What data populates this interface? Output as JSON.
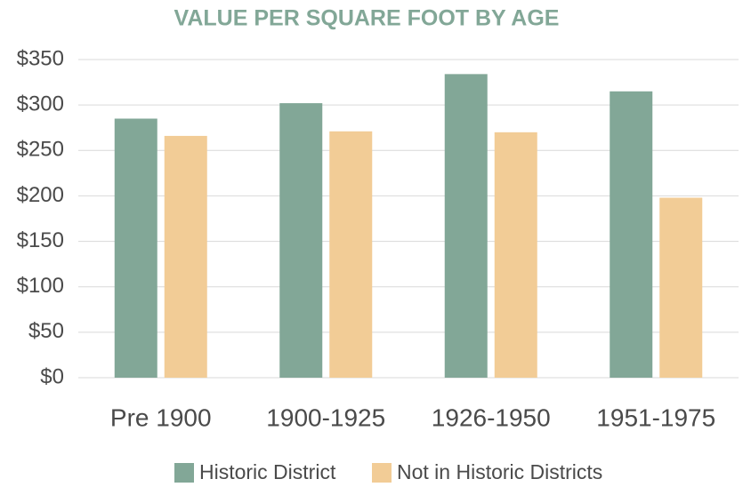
{
  "chart_data": {
    "type": "bar",
    "title": "VALUE PER SQUARE FOOT BY AGE",
    "categories": [
      "Pre 1900",
      "1900-1925",
      "1926-1950",
      "1951-1975"
    ],
    "series": [
      {
        "name": "Historic District",
        "color": "#82a797",
        "values": [
          285,
          302,
          334,
          315
        ]
      },
      {
        "name": "Not in Historic Districts",
        "color": "#f2cc96",
        "values": [
          266,
          271,
          270,
          198
        ]
      }
    ],
    "ylim": [
      0,
      350
    ],
    "yticks": [
      {
        "value": 0,
        "label": "$0"
      },
      {
        "value": 50,
        "label": "$50"
      },
      {
        "value": 100,
        "label": "$100"
      },
      {
        "value": 150,
        "label": "$150"
      },
      {
        "value": 200,
        "label": "$200"
      },
      {
        "value": 250,
        "label": "$250"
      },
      {
        "value": 300,
        "label": "$300"
      },
      {
        "value": 350,
        "label": "$350"
      }
    ],
    "grid": true,
    "legend": "bottom"
  }
}
